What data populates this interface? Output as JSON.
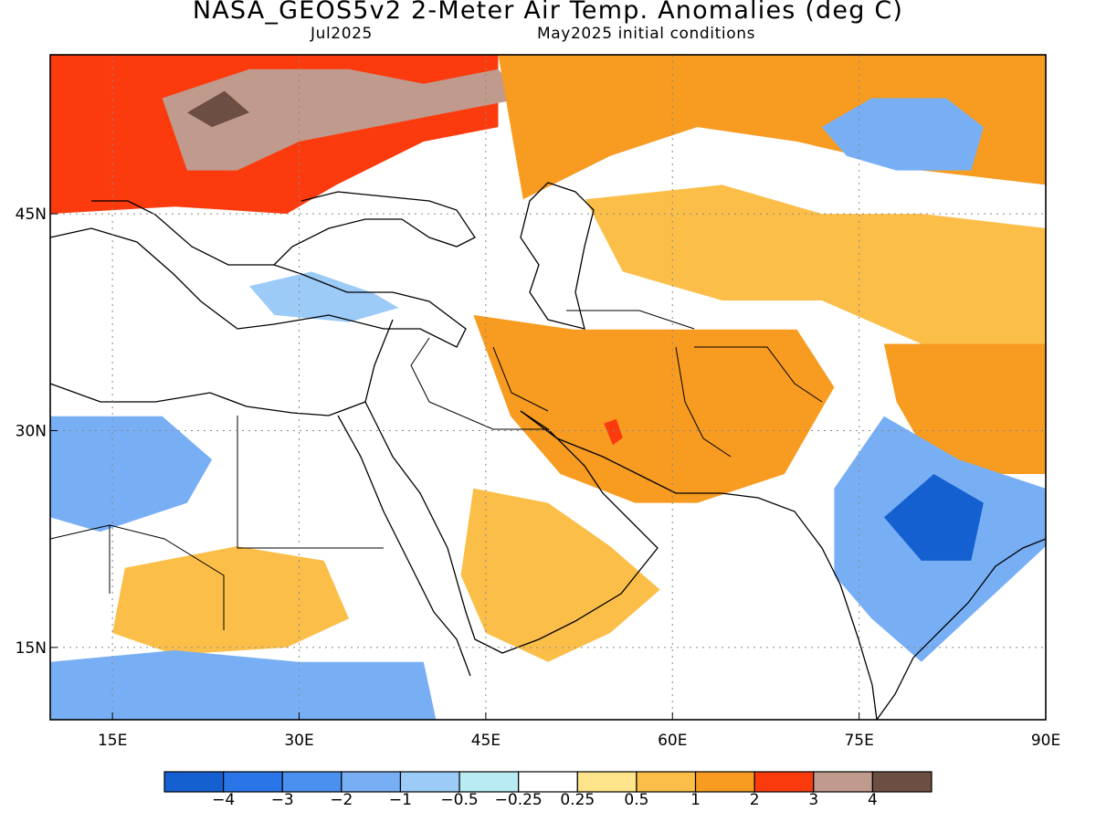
{
  "header": {
    "title": "NASA_GEOS5v2 2-Meter Air Temp. Anomalies (deg C)",
    "valid_month": "Jul2025",
    "init_conditions": "May2025 initial conditions"
  },
  "map": {
    "lon_range": [
      10,
      90
    ],
    "lat_range": [
      10,
      56
    ],
    "lon_ticks": [
      {
        "lon": 15,
        "label": "15E"
      },
      {
        "lon": 30,
        "label": "30E"
      },
      {
        "lon": 45,
        "label": "45E"
      },
      {
        "lon": 60,
        "label": "60E"
      },
      {
        "lon": 75,
        "label": "75E"
      },
      {
        "lon": 90,
        "label": "90E"
      }
    ],
    "lat_ticks": [
      {
        "lat": 45,
        "label": "45N"
      },
      {
        "lat": 30,
        "label": "30N"
      },
      {
        "lat": 15,
        "label": "15N"
      }
    ],
    "grid": "dotted"
  },
  "colorbar": {
    "colors": [
      "#1560d0",
      "#2a76e8",
      "#4a90ee",
      "#78aff4",
      "#9ccbf8",
      "#b8ecf2",
      "#ffffff",
      "#fde38a",
      "#fbbf49",
      "#f79b21",
      "#fb3b0e",
      "#c09a8d",
      "#6d4e42"
    ],
    "labels": [
      "-4",
      "-3",
      "-2",
      "-1",
      "-0.5",
      "-0.25",
      "0.25",
      "0.5",
      "1",
      "2",
      "3",
      "4"
    ]
  },
  "anomaly_regions": [
    {
      "name": "eastern-europe-russia",
      "color": "#fb3b0e",
      "poly": [
        [
          10,
          56
        ],
        [
          46,
          56
        ],
        [
          46,
          51
        ],
        [
          40,
          50
        ],
        [
          33,
          47
        ],
        [
          29,
          45
        ],
        [
          20,
          45.5
        ],
        [
          10,
          45
        ]
      ]
    },
    {
      "name": "ukraine-core",
      "color": "#c09a8d",
      "poly": [
        [
          19,
          53
        ],
        [
          26,
          55
        ],
        [
          34,
          55
        ],
        [
          40,
          54
        ],
        [
          46,
          55
        ],
        [
          48,
          53
        ],
        [
          42,
          52
        ],
        [
          36,
          51
        ],
        [
          30,
          50
        ],
        [
          25,
          48
        ],
        [
          21,
          48
        ]
      ]
    },
    {
      "name": "ukraine-max",
      "color": "#6d4e42",
      "poly": [
        [
          21,
          52
        ],
        [
          24,
          53.5
        ],
        [
          26,
          52
        ],
        [
          23,
          51
        ]
      ]
    },
    {
      "name": "russia-steppe",
      "color": "#f79b21",
      "poly": [
        [
          46,
          56
        ],
        [
          90,
          56
        ],
        [
          90,
          47
        ],
        [
          80,
          48
        ],
        [
          70,
          50
        ],
        [
          62,
          51
        ],
        [
          55,
          49
        ],
        [
          48,
          46
        ]
      ]
    },
    {
      "name": "mongolia-blue",
      "color": "#78aff4",
      "poly": [
        [
          72,
          51
        ],
        [
          76,
          53
        ],
        [
          82,
          53
        ],
        [
          85,
          51
        ],
        [
          84,
          48
        ],
        [
          78,
          48
        ],
        [
          74,
          49
        ]
      ]
    },
    {
      "name": "central-asia-orange",
      "color": "#fbbf49",
      "poly": [
        [
          53,
          46
        ],
        [
          64,
          47
        ],
        [
          72,
          45
        ],
        [
          80,
          45
        ],
        [
          90,
          44
        ],
        [
          90,
          36
        ],
        [
          80,
          36
        ],
        [
          72,
          39
        ],
        [
          64,
          39
        ],
        [
          56,
          41
        ]
      ]
    },
    {
      "name": "iran-afghan",
      "color": "#f79b21",
      "poly": [
        [
          44,
          38
        ],
        [
          52,
          37
        ],
        [
          60,
          37
        ],
        [
          70,
          37
        ],
        [
          73,
          33
        ],
        [
          69,
          27
        ],
        [
          62,
          25
        ],
        [
          57,
          25
        ],
        [
          51,
          27
        ],
        [
          47,
          31
        ]
      ]
    },
    {
      "name": "iran-hot",
      "color": "#fb3b0e",
      "poly": [
        [
          54.5,
          30.5
        ],
        [
          55.5,
          30.8
        ],
        [
          56,
          29.5
        ],
        [
          55.2,
          29
        ]
      ]
    },
    {
      "name": "tibet",
      "color": "#f79b21",
      "poly": [
        [
          77,
          36
        ],
        [
          90,
          36
        ],
        [
          90,
          27
        ],
        [
          85,
          27
        ],
        [
          80,
          29
        ],
        [
          78,
          32
        ]
      ]
    },
    {
      "name": "arabia",
      "color": "#fbbf49",
      "poly": [
        [
          44,
          26
        ],
        [
          50,
          25
        ],
        [
          55,
          22
        ],
        [
          59,
          19
        ],
        [
          55,
          16
        ],
        [
          50,
          14
        ],
        [
          45,
          16
        ],
        [
          43,
          20
        ]
      ]
    },
    {
      "name": "north-africa-blue",
      "color": "#78aff4",
      "poly": [
        [
          10,
          31
        ],
        [
          19,
          31
        ],
        [
          23,
          28
        ],
        [
          21,
          25
        ],
        [
          14,
          23
        ],
        [
          10,
          24
        ]
      ]
    },
    {
      "name": "sahel-orange",
      "color": "#fbbf49",
      "poly": [
        [
          16,
          20.5
        ],
        [
          25,
          22
        ],
        [
          32,
          21
        ],
        [
          34,
          17
        ],
        [
          29,
          15
        ],
        [
          20,
          14.5
        ],
        [
          15,
          16
        ]
      ]
    },
    {
      "name": "east-africa-blue",
      "color": "#78aff4",
      "poly": [
        [
          10,
          14
        ],
        [
          20,
          14.8
        ],
        [
          30,
          14
        ],
        [
          36,
          14
        ],
        [
          40,
          14
        ],
        [
          41,
          10
        ],
        [
          10,
          10
        ]
      ]
    },
    {
      "name": "india-blue",
      "color": "#78aff4",
      "poly": [
        [
          73,
          26
        ],
        [
          77,
          31
        ],
        [
          83,
          28
        ],
        [
          90,
          26
        ],
        [
          90,
          22
        ],
        [
          85,
          18
        ],
        [
          80,
          14
        ],
        [
          76,
          17
        ],
        [
          73,
          20
        ]
      ]
    },
    {
      "name": "india-deep",
      "color": "#1560d0",
      "poly": [
        [
          77,
          24
        ],
        [
          81,
          27
        ],
        [
          85,
          25
        ],
        [
          84,
          21
        ],
        [
          80,
          21
        ]
      ]
    },
    {
      "name": "turkey-blue",
      "color": "#9ccbf8",
      "poly": [
        [
          26,
          40
        ],
        [
          31,
          41
        ],
        [
          36,
          39.5
        ],
        [
          38,
          38.5
        ],
        [
          34,
          37.5
        ],
        [
          28,
          38
        ]
      ]
    }
  ]
}
